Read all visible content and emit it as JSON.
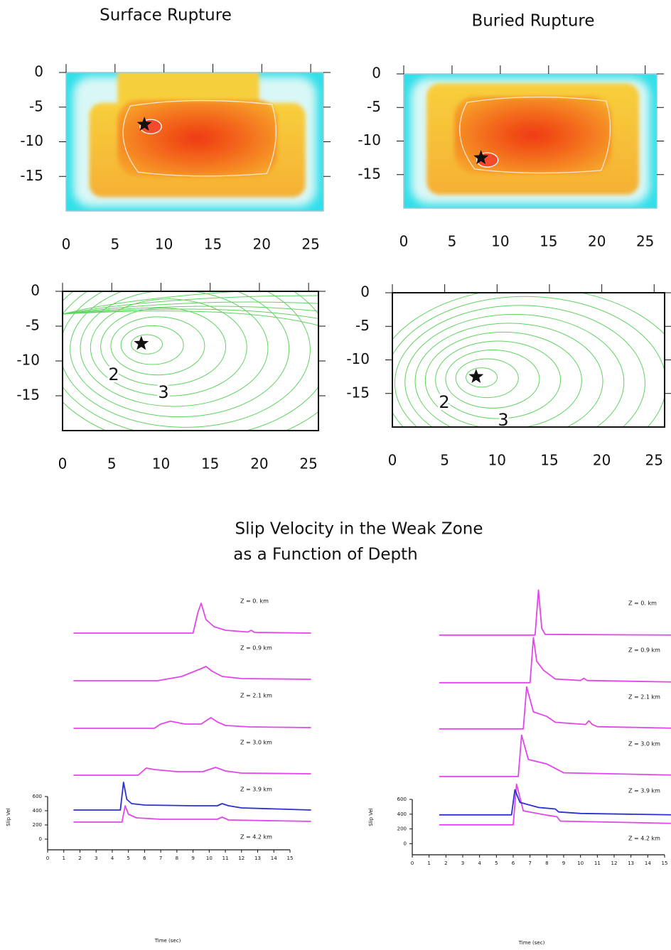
{
  "title": [
    "Slip Velocity in the Weak Zone",
    "as a Function of Depth"
  ],
  "chart_data": [
    {
      "type": "heatmap",
      "title": "Surface Rupture",
      "xlim": [
        0,
        26.3
      ],
      "ylim": [
        -20,
        0
      ],
      "xticks": [
        0,
        5,
        10,
        15,
        20,
        25
      ],
      "yticks": [
        0,
        -5,
        -10,
        -15
      ],
      "hypocenter": {
        "x": 8,
        "y": -7.5
      }
    },
    {
      "type": "heatmap",
      "title": "Buried Rupture",
      "xlim": [
        0,
        26.2
      ],
      "ylim": [
        -20,
        0
      ],
      "xticks": [
        0,
        5,
        10,
        15,
        20,
        25
      ],
      "yticks": [
        0,
        -5,
        -10,
        -15
      ],
      "hypocenter": {
        "x": 8,
        "y": -12.5
      }
    },
    {
      "type": "contour",
      "xlim": [
        0,
        26
      ],
      "ylim": [
        -20,
        0
      ],
      "xticks": [
        0,
        5,
        10,
        15,
        20,
        25
      ],
      "yticks": [
        0,
        -5,
        -10,
        -15
      ],
      "hypocenter": {
        "x": 8,
        "y": -7.5
      },
      "contour_labels": [
        "2",
        "3"
      ],
      "color": "#5fd35f"
    },
    {
      "type": "contour",
      "xlim": [
        0,
        26
      ],
      "ylim": [
        -20,
        0
      ],
      "xticks": [
        0,
        5,
        10,
        15,
        20,
        25
      ],
      "yticks": [
        0,
        -5,
        -10,
        -15
      ],
      "hypocenter": {
        "x": 8,
        "y": -12.5
      },
      "contour_labels": [
        "2",
        "3"
      ],
      "color": "#5fd35f"
    },
    {
      "type": "line",
      "x_label": "Time (sec)",
      "y_label": "Slip Vel",
      "xlim": [
        0,
        15
      ],
      "ylim": [
        -150,
        600
      ],
      "xticks": [
        0,
        1,
        2,
        3,
        4,
        5,
        6,
        7,
        8,
        9,
        10,
        11,
        12,
        13,
        14,
        15
      ],
      "yticks": [
        0,
        200,
        400,
        600
      ],
      "series": [
        {
          "name": "Z = 0. km",
          "color": "#e246ea",
          "x": [
            1.6,
            9.0,
            9.3,
            9.5,
            9.8,
            10.3,
            11,
            12.4,
            12.6,
            12.8,
            16.3
          ],
          "values": [
            410,
            410,
            700,
            830,
            600,
            500,
            450,
            425,
            450,
            420,
            410
          ]
        },
        {
          "name": "Z = 0.9 km",
          "color": "#e246ea",
          "x": [
            1.6,
            6.8,
            8.3,
            9.5,
            9.8,
            10.2,
            10.8,
            12,
            16.3
          ],
          "values": [
            410,
            410,
            470,
            580,
            610,
            540,
            470,
            440,
            430
          ]
        },
        {
          "name": "Z = 2.1 km",
          "color": "#e246ea",
          "x": [
            1.6,
            6.6,
            7.0,
            7.6,
            8.5,
            9.5,
            10.1,
            10.5,
            11,
            12.5,
            16.3
          ],
          "values": [
            410,
            410,
            470,
            510,
            470,
            470,
            560,
            500,
            450,
            430,
            420
          ]
        },
        {
          "name": "Z = 3.0 km",
          "color": "#e246ea",
          "x": [
            1.6,
            5.6,
            6.1,
            6.6,
            8,
            9.6,
            10.4,
            11,
            12,
            16.3
          ],
          "values": [
            410,
            410,
            510,
            490,
            460,
            460,
            520,
            470,
            440,
            430
          ]
        },
        {
          "name": "Z = 3.9 km",
          "color": "#e246ea",
          "x": [
            1.6,
            4.6,
            4.8,
            5.0,
            5.5,
            7,
            10.5,
            10.8,
            11.2,
            16.3
          ],
          "values": [
            410,
            410,
            640,
            520,
            470,
            450,
            450,
            480,
            440,
            420
          ]
        },
        {
          "name": "Z = 4.2 km",
          "color": "#2a2fd8",
          "x": [
            1.6,
            4.5,
            4.7,
            4.9,
            5.2,
            6,
            9,
            10.5,
            10.8,
            11.2,
            12,
            16.3
          ],
          "values": [
            410,
            410,
            800,
            560,
            500,
            480,
            470,
            470,
            500,
            470,
            440,
            410
          ]
        }
      ]
    },
    {
      "type": "line",
      "x_label": "Time (sec)",
      "y_label": "Slip Vel",
      "xlim": [
        0,
        15
      ],
      "ylim": [
        -150,
        600
      ],
      "xticks": [
        0,
        1,
        2,
        3,
        4,
        5,
        6,
        7,
        8,
        9,
        10,
        11,
        12,
        13,
        14,
        15
      ],
      "yticks": [
        0,
        200,
        400,
        600
      ],
      "series": [
        {
          "name": "Z = 0. km",
          "color": "#e246ea",
          "x": [
            1.6,
            7.3,
            7.5,
            7.7,
            7.9,
            15.5
          ],
          "values": [
            390,
            390,
            1000,
            480,
            400,
            390
          ]
        },
        {
          "name": "Z = 0.9 km",
          "color": "#e246ea",
          "x": [
            1.6,
            7.0,
            7.2,
            7.4,
            7.8,
            8.5,
            10,
            10.2,
            10.4,
            15.5
          ],
          "values": [
            390,
            390,
            1000,
            680,
            560,
            440,
            420,
            450,
            420,
            400
          ]
        },
        {
          "name": "Z = 2.1 km",
          "color": "#e246ea",
          "x": [
            1.6,
            6.6,
            6.8,
            7.2,
            8.0,
            8.5,
            10.3,
            10.5,
            10.7,
            11,
            15.5
          ],
          "values": [
            390,
            390,
            960,
            620,
            560,
            480,
            450,
            500,
            450,
            420,
            400
          ]
        },
        {
          "name": "Z = 3.0 km",
          "color": "#e246ea",
          "x": [
            1.6,
            6.3,
            6.5,
            6.9,
            8.0,
            8.5,
            9.0,
            15.5
          ],
          "values": [
            390,
            390,
            950,
            620,
            560,
            500,
            440,
            410
          ]
        },
        {
          "name": "Z = 3.9 km",
          "color": "#e246ea",
          "x": [
            1.6,
            6.0,
            6.2,
            6.6,
            8.0,
            8.6,
            8.8,
            15.5
          ],
          "values": [
            390,
            390,
            940,
            580,
            520,
            500,
            440,
            410
          ]
        },
        {
          "name": "Z = 4.2 km",
          "color": "#2a2fd8",
          "x": [
            1.6,
            5.9,
            6.1,
            6.4,
            7.5,
            8.5,
            8.7,
            10,
            15.5
          ],
          "values": [
            390,
            390,
            730,
            560,
            490,
            470,
            430,
            410,
            390
          ]
        }
      ]
    }
  ]
}
